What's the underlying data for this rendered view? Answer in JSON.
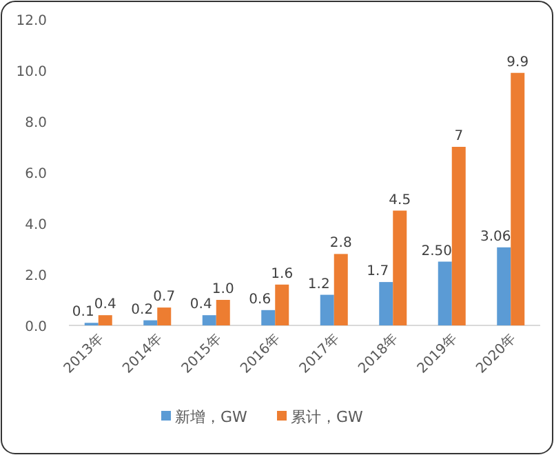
{
  "chart_data": {
    "type": "bar",
    "categories": [
      "2013年",
      "2014年",
      "2015年",
      "2016年",
      "2017年",
      "2018年",
      "2019年",
      "2020年"
    ],
    "series": [
      {
        "name": "新增，GW",
        "color": "#5b9bd5",
        "values": [
          0.1,
          0.2,
          0.4,
          0.6,
          1.2,
          1.7,
          2.5,
          3.06
        ],
        "value_labels": [
          "0.1",
          "0.2",
          "0.4",
          "0.6",
          "1.2",
          "1.7",
          "2.50",
          "3.06"
        ]
      },
      {
        "name": "累计，GW",
        "color": "#ed7d31",
        "values": [
          0.4,
          0.7,
          1.0,
          1.6,
          2.8,
          4.5,
          7,
          9.9
        ],
        "value_labels": [
          "0.4",
          "0.7",
          "1.0",
          "1.6",
          "2.8",
          "4.5",
          "7",
          "9.9"
        ]
      }
    ],
    "ylim": [
      0,
      12
    ],
    "yticks": [
      {
        "value": 0,
        "label": "0.0"
      },
      {
        "value": 2,
        "label": "2.0"
      },
      {
        "value": 4,
        "label": "4.0"
      },
      {
        "value": 6,
        "label": "6.0"
      },
      {
        "value": 8,
        "label": "8.0"
      },
      {
        "value": 10,
        "label": "10.0"
      },
      {
        "value": 12,
        "label": "12.0"
      }
    ],
    "legend": "bottom"
  }
}
